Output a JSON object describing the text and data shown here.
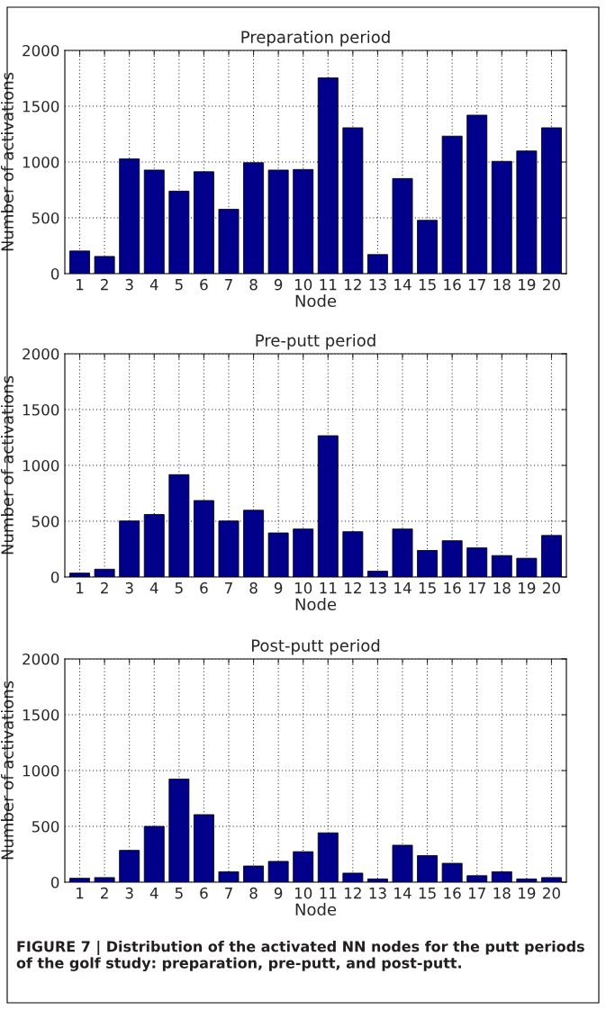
{
  "chart_data": [
    {
      "type": "bar",
      "title": "Preparation period",
      "xlabel": "Node",
      "ylabel": "Number of activations",
      "categories": [
        "1",
        "2",
        "3",
        "4",
        "5",
        "6",
        "7",
        "8",
        "9",
        "10",
        "11",
        "12",
        "13",
        "14",
        "15",
        "16",
        "17",
        "18",
        "19",
        "20"
      ],
      "series": [
        {
          "color": "#00008b",
          "values": [
            203,
            154,
            1029,
            928,
            739,
            913,
            577,
            994,
            928,
            933,
            1754,
            1307,
            171,
            852,
            478,
            1232,
            1420,
            1006,
            1099,
            1307
          ]
        }
      ],
      "ylim": [
        0,
        2000
      ],
      "yticks": [
        0,
        500,
        1000,
        1500,
        2000
      ],
      "grid": true
    },
    {
      "type": "bar",
      "title": "Pre-putt period",
      "xlabel": "Node",
      "ylabel": "Number of activations",
      "categories": [
        "1",
        "2",
        "3",
        "4",
        "5",
        "6",
        "7",
        "8",
        "9",
        "10",
        "11",
        "12",
        "13",
        "14",
        "15",
        "16",
        "17",
        "18",
        "19",
        "20"
      ],
      "series": [
        {
          "color": "#00008b",
          "values": [
            35,
            70,
            502,
            560,
            917,
            685,
            502,
            598,
            395,
            430,
            1266,
            406,
            52,
            430,
            238,
            325,
            261,
            192,
            168,
            372
          ]
        }
      ],
      "ylim": [
        0,
        2000
      ],
      "yticks": [
        0,
        500,
        1000,
        1500,
        2000
      ],
      "grid": true
    },
    {
      "type": "bar",
      "title": "Post-putt period",
      "xlabel": "Node",
      "ylabel": "Number of activations",
      "categories": [
        "1",
        "2",
        "3",
        "4",
        "5",
        "6",
        "7",
        "8",
        "9",
        "10",
        "11",
        "12",
        "13",
        "14",
        "15",
        "16",
        "17",
        "18",
        "19",
        "20"
      ],
      "series": [
        {
          "color": "#00008b",
          "values": [
            35,
            41,
            285,
            500,
            924,
            605,
            93,
            145,
            186,
            273,
            442,
            81,
            29,
            331,
            238,
            169,
            58,
            93,
            29,
            41
          ]
        }
      ],
      "ylim": [
        0,
        2000
      ],
      "yticks": [
        0,
        500,
        1000,
        1500,
        2000
      ],
      "grid": true,
      "annotations": [
        "FIGURE 7 | Distribution of the activated NN nodes for the putt periods of the golf study: preparation, pre-putt, and post-putt."
      ]
    }
  ]
}
